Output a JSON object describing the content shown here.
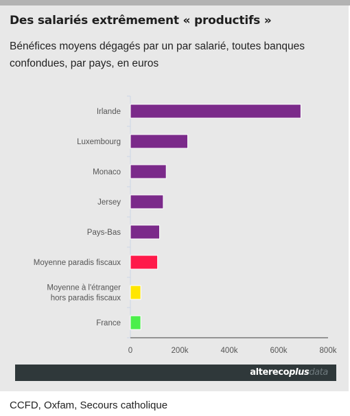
{
  "header": {
    "title": "Des salariés extrêmement « productifs »",
    "subtitle": "Bénéfices moyens dégagés par un par salarié, toutes banques confondues, par pays, en euros"
  },
  "chart_data": {
    "type": "bar",
    "orientation": "horizontal",
    "categories": [
      [
        "Irlande"
      ],
      [
        "Luxembourg"
      ],
      [
        "Monaco"
      ],
      [
        "Jersey"
      ],
      [
        "Pays-Bas"
      ],
      [
        "Moyenne paradis fiscaux"
      ],
      [
        "Moyenne à l'étranger",
        "hors paradis fiscaux"
      ],
      [
        "France"
      ]
    ],
    "values": [
      690000,
      232000,
      145000,
      133000,
      118000,
      110000,
      42000,
      42000
    ],
    "colors": [
      "#7b2a8a",
      "#7b2a8a",
      "#7b2a8a",
      "#7b2a8a",
      "#7b2a8a",
      "#ff1a4a",
      "#ffe600",
      "#4bef4b"
    ],
    "xlim": [
      0,
      800000
    ],
    "xticks": [
      0,
      200000,
      400000,
      600000,
      800000
    ],
    "xtick_labels": [
      "0",
      "200k",
      "400k",
      "600k",
      "800k"
    ],
    "legend": "none",
    "grid": false
  },
  "brand": {
    "part1": "altereco",
    "part2": "plus",
    "part3": "data"
  },
  "footer": {
    "source": "CCFD, Oxfam, Secours catholique"
  },
  "colors": {
    "card_background": "#e8e8e8",
    "brand_bar": "#2f383a"
  }
}
